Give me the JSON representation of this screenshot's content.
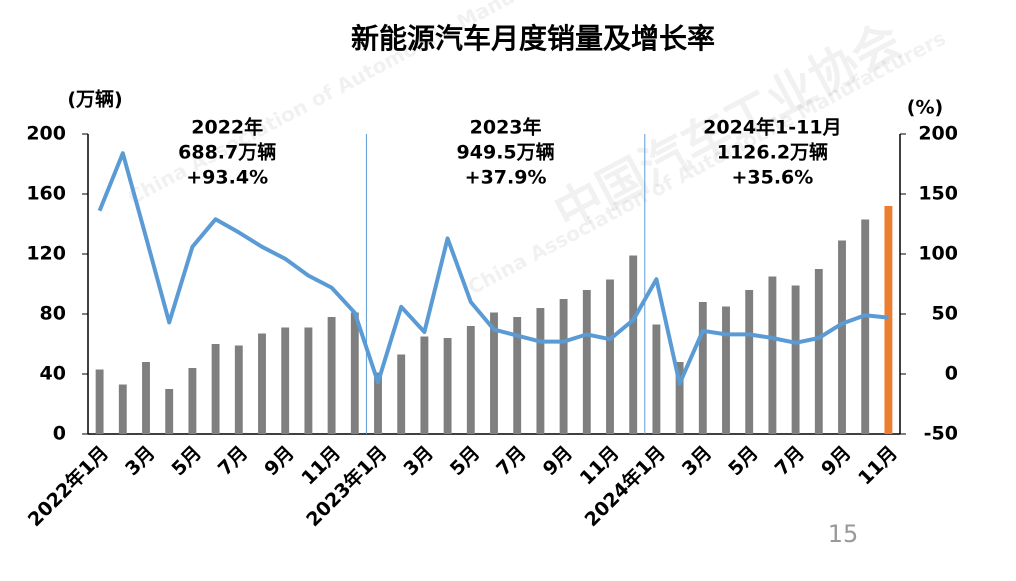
{
  "chart_data": {
    "type": "bar-line",
    "title": "新能源汽车月度销量及增长率",
    "watermark": [
      "中国汽车工业协会",
      "China Association of Automobile Manufacturers"
    ],
    "page_number": "15",
    "y_label": "(万辆)",
    "y2_label": "(%)",
    "annotations": [
      [
        "2022年",
        "688.7万辆",
        "+93.4%"
      ],
      [
        "2023年",
        "949.5万辆",
        "+37.9%"
      ],
      [
        "2024年1-11月",
        "1126.2万辆",
        "+35.6%"
      ]
    ],
    "categories": [
      "2022年1月",
      null,
      "3月",
      null,
      "5月",
      null,
      "7月",
      null,
      "9月",
      null,
      "11月",
      null,
      "2023年1月",
      null,
      "3月",
      null,
      "5月",
      null,
      "7月",
      null,
      "9月",
      null,
      "11月",
      null,
      "2024年1月",
      null,
      "3月",
      null,
      "5月",
      null,
      "7月",
      null,
      "9月",
      null,
      "11月"
    ],
    "series": [
      {
        "name": "销量",
        "type": "bar",
        "color": "#7f7f7f",
        "colors": [
          "#7f7f7f",
          "#7f7f7f",
          "#7f7f7f",
          "#7f7f7f",
          "#7f7f7f",
          "#7f7f7f",
          "#7f7f7f",
          "#7f7f7f",
          "#7f7f7f",
          "#7f7f7f",
          "#7f7f7f",
          "#7f7f7f",
          "#7f7f7f",
          "#7f7f7f",
          "#7f7f7f",
          "#7f7f7f",
          "#7f7f7f",
          "#7f7f7f",
          "#7f7f7f",
          "#7f7f7f",
          "#7f7f7f",
          "#7f7f7f",
          "#7f7f7f",
          "#7f7f7f",
          "#7f7f7f",
          "#7f7f7f",
          "#7f7f7f",
          "#7f7f7f",
          "#7f7f7f",
          "#7f7f7f",
          "#7f7f7f",
          "#7f7f7f",
          "#7f7f7f",
          "#7f7f7f",
          "#ed7d31"
        ],
        "values": [
          43,
          33,
          48,
          30,
          44,
          60,
          59,
          67,
          71,
          71,
          78,
          81,
          41,
          53,
          65,
          64,
          72,
          81,
          78,
          84,
          90,
          96,
          103,
          119,
          73,
          48,
          88,
          85,
          96,
          105,
          99,
          110,
          129,
          143,
          152
        ]
      },
      {
        "name": "增长率",
        "type": "line",
        "axis": "y2",
        "color": "#5b9bd5",
        "values": [
          136,
          184,
          114,
          43,
          106,
          129,
          118,
          106,
          96,
          82,
          72,
          51,
          -7,
          56,
          35,
          113,
          60,
          37,
          32,
          27,
          27,
          33,
          29,
          45,
          79,
          -8,
          36,
          33,
          33,
          30,
          26,
          30,
          42,
          49,
          47
        ]
      }
    ],
    "ylim": [
      0,
      200
    ],
    "yticks": [
      0,
      40,
      80,
      120,
      160,
      200
    ],
    "y2lim": [
      -50,
      200
    ],
    "y2ticks": [
      -50,
      0,
      50,
      100,
      150,
      200
    ]
  }
}
